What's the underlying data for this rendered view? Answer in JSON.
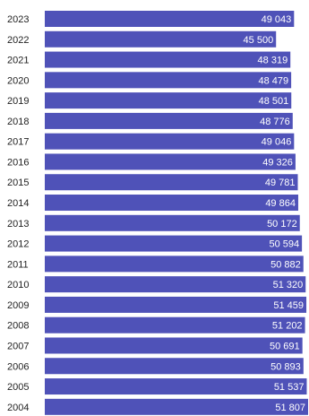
{
  "chart_data": {
    "type": "bar",
    "orientation": "horizontal",
    "categories": [
      "2023",
      "2022",
      "2021",
      "2020",
      "2019",
      "2018",
      "2017",
      "2016",
      "2015",
      "2014",
      "2013",
      "2012",
      "2011",
      "2010",
      "2009",
      "2008",
      "2007",
      "2006",
      "2005",
      "2004"
    ],
    "value_labels": [
      "49 043",
      "45 500",
      "48 319",
      "48 479",
      "48 501",
      "48 776",
      "49 046",
      "49 326",
      "49 781",
      "49 864",
      "50 172",
      "50 594",
      "50 882",
      "51 320",
      "51 459",
      "51 202",
      "50 691",
      "50 893",
      "51 537",
      "51 807"
    ],
    "values": [
      49043,
      45500,
      48319,
      48479,
      48501,
      48776,
      49046,
      49326,
      49781,
      49864,
      50172,
      50594,
      50882,
      51320,
      51459,
      51202,
      50691,
      50893,
      51537,
      51807
    ],
    "xlim": [
      0,
      51807
    ],
    "bar_color": "#4f52b8",
    "grid": false,
    "legend": "none"
  }
}
